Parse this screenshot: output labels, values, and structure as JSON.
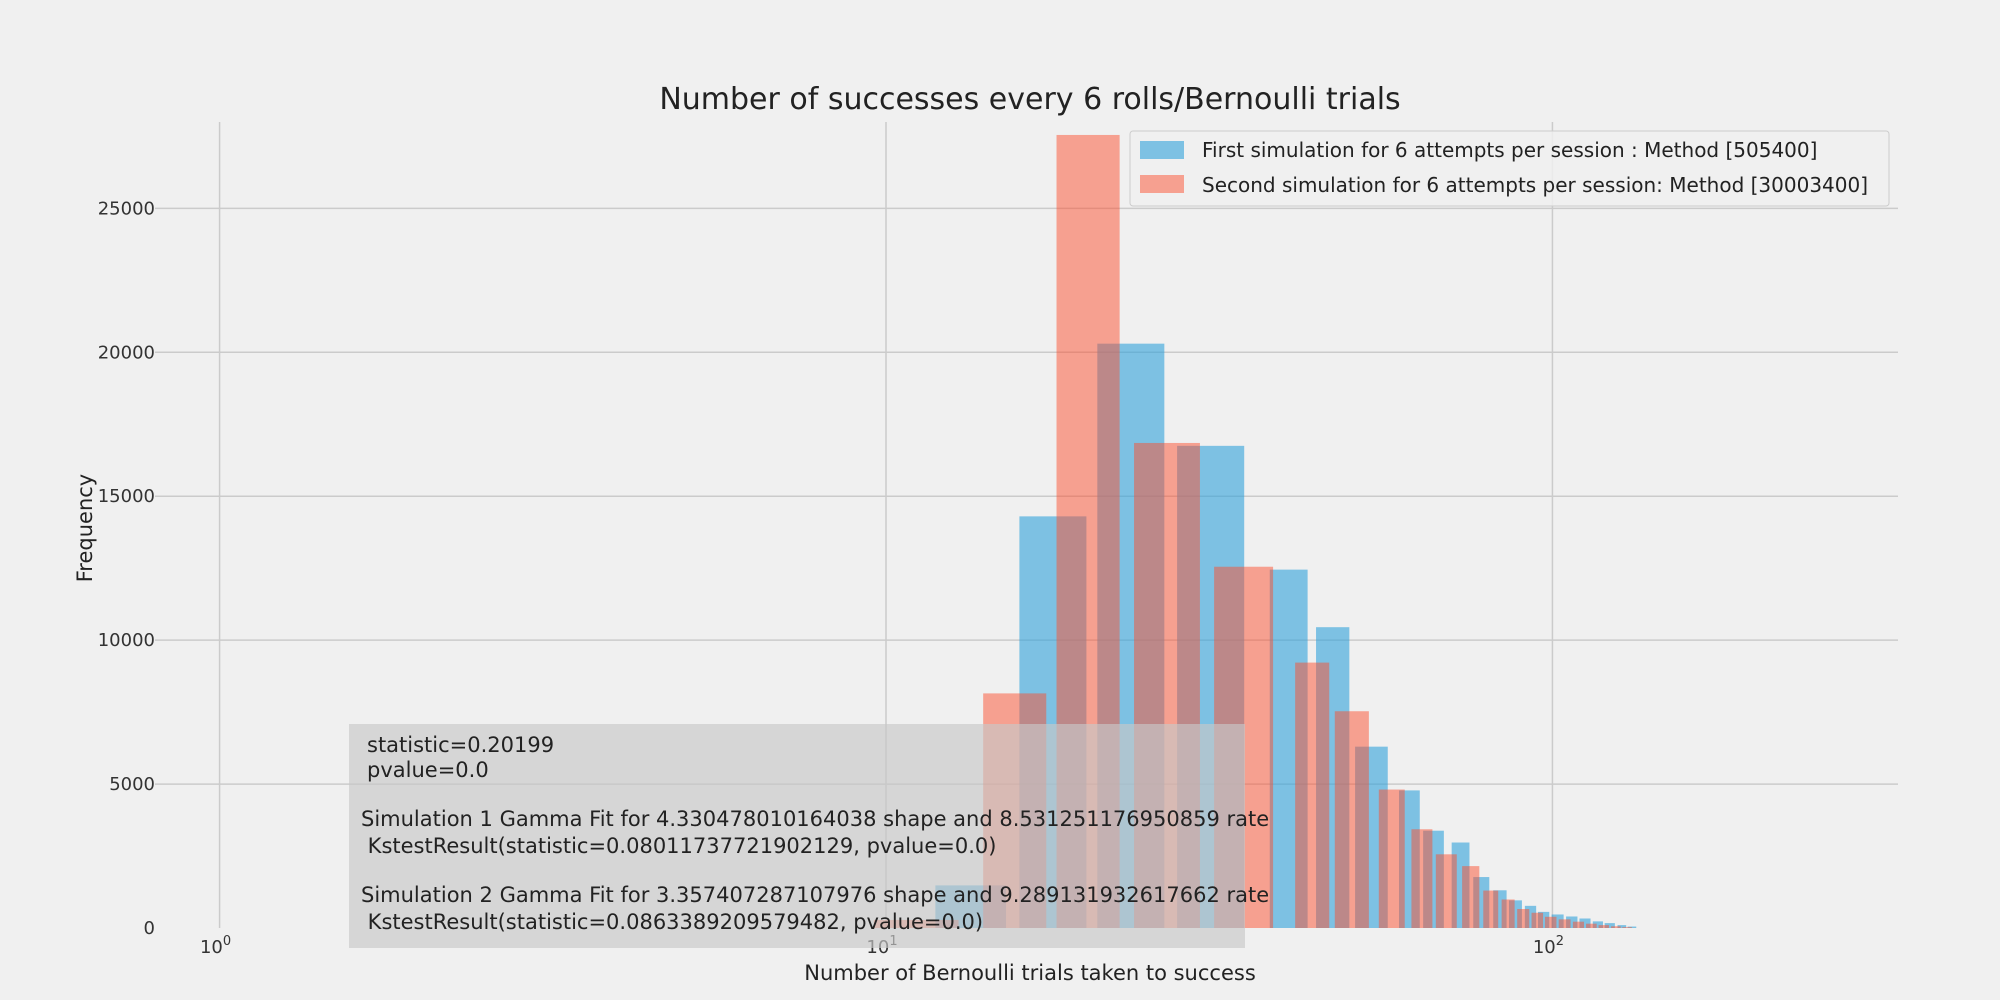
{
  "chart_data": {
    "type": "bar",
    "title": "Number of successes every 6 rolls/Bernoulli trials",
    "xlabel": "Number of Bernoulli trials taken to success",
    "ylabel": "Frequency",
    "xscale": "log",
    "xlim": [
      0.8,
      330
    ],
    "ylim": [
      0,
      28000
    ],
    "xticks": [
      {
        "base": "10",
        "exp": "0",
        "value": 1
      },
      {
        "base": "10",
        "exp": "1",
        "value": 10
      },
      {
        "base": "10",
        "exp": "2",
        "value": 100
      }
    ],
    "yticks": [
      0,
      5000,
      10000,
      15000,
      20000,
      25000
    ],
    "ytick_labels": [
      "0",
      "5000",
      "10000",
      "15000",
      "20000",
      "25000"
    ],
    "grid": true,
    "legend_position": "top-right",
    "series": [
      {
        "name": "First simulation for 6 attempts per session : Method [505400]",
        "color": "#30a2da",
        "x": [
          13.4,
          17.8,
          23.3,
          30.7,
          40.2,
          46.8,
          53.5,
          61.0,
          66.3,
          72.8,
          78.2,
          83.4,
          88.0,
          92.7,
          97.0,
          101.8,
          106.9,
          111.9,
          117.0,
          121.9,
          127.1,
          131.6
        ],
        "values": [
          1480,
          14300,
          20300,
          16750,
          12450,
          10450,
          6300,
          4780,
          3380,
          2970,
          1770,
          1310,
          960,
          770,
          560,
          470,
          400,
          330,
          230,
          170,
          100,
          50
        ]
      },
      {
        "name": "Second simulation for 6 attempts per session: Method [30003400]",
        "color": "#fc4f30",
        "x": [
          11.1,
          15.6,
          20.1,
          26.4,
          34.4,
          43.6,
          50.0,
          57.4,
          63.7,
          69.3,
          75.4,
          80.8,
          85.8,
          90.4,
          94.9,
          99.4,
          104.3,
          109.4,
          114.4,
          119.4,
          124.5,
          129.4
        ],
        "values": [
          280,
          8150,
          27550,
          16850,
          12550,
          9220,
          7530,
          4810,
          3430,
          2560,
          2150,
          1300,
          990,
          660,
          530,
          390,
          300,
          220,
          150,
          100,
          60,
          30
        ]
      }
    ],
    "annotation_lines": [
      "statistic=0.20199",
      "pvalue=0.0",
      "",
      "Simulation 1 Gamma Fit for 4.330478010164038 shape and 8.531251176950859 rate",
      " KstestResult(statistic=0.08011737721902129, pvalue=0.0)",
      "",
      "Simulation 2 Gamma Fit for 3.357407287107976 shape and 9.289131932617662 rate",
      " KstestResult(statistic=0.0863389209579482, pvalue=0.0)"
    ]
  }
}
